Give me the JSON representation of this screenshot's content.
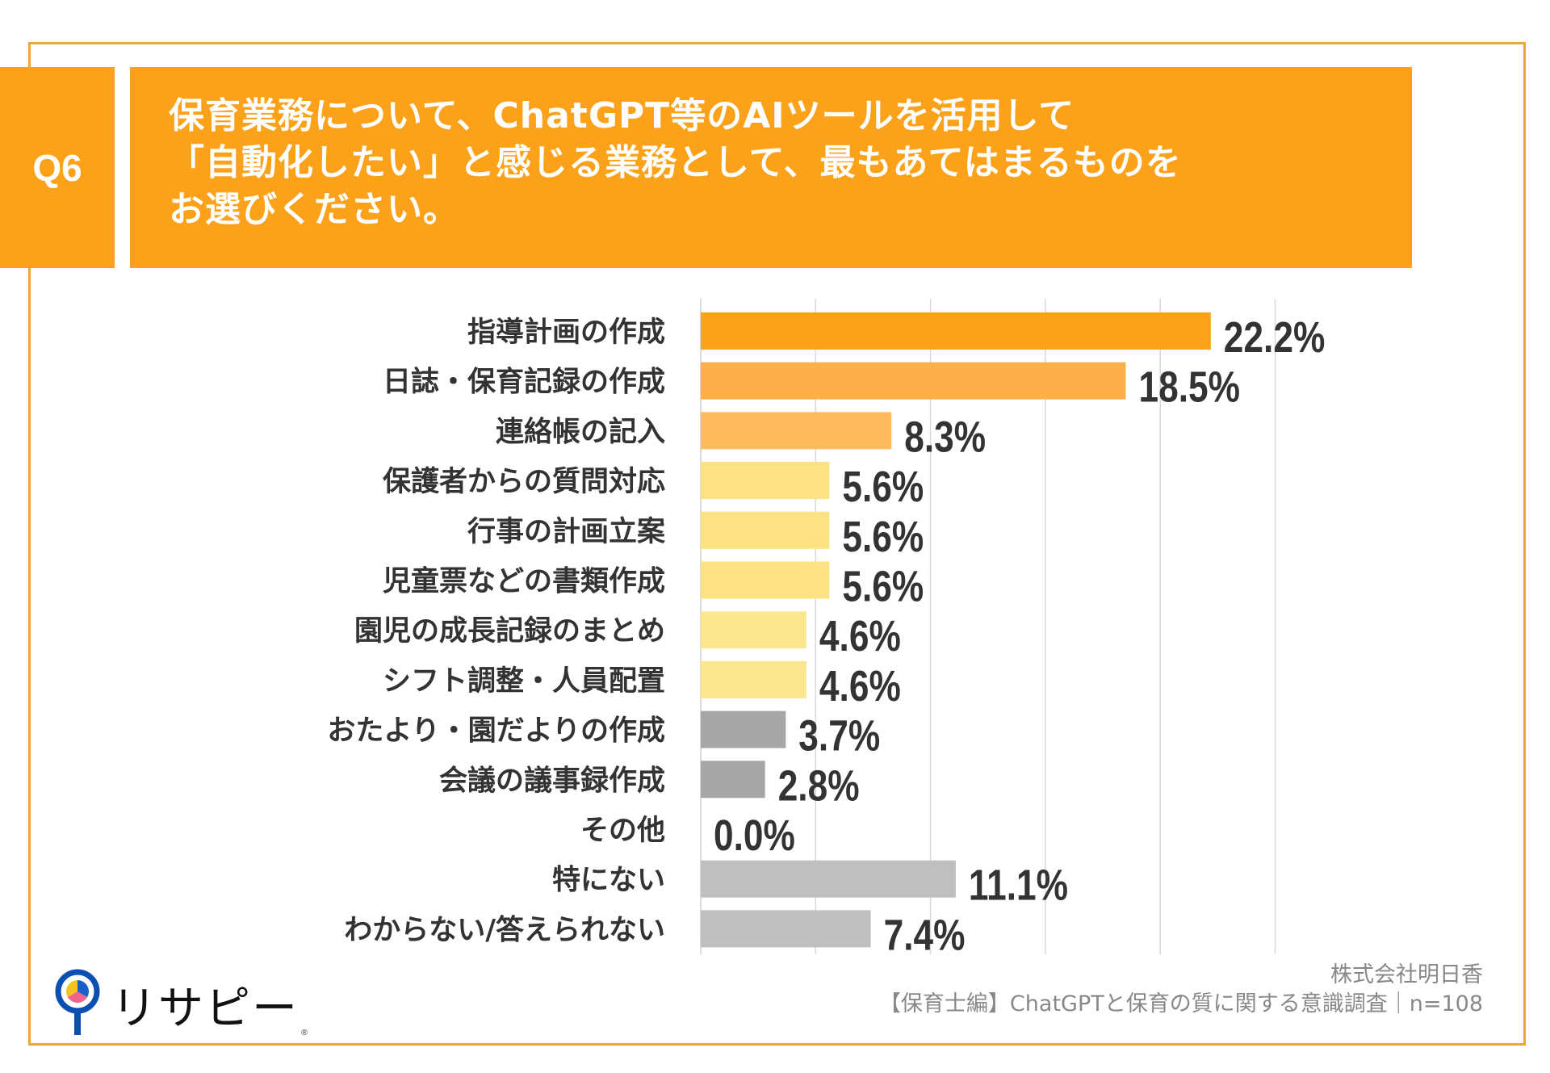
{
  "header": {
    "question_number": "Q6",
    "title_lines": [
      "保育業務について、ChatGPT等のAIツールを活用して",
      "「自動化したい」と感じる業務として、最もあてはまるものを",
      "お選びください。"
    ]
  },
  "colors": {
    "header_orange": "#FBA11A",
    "frame": "#E8A93A",
    "text_dark": "#333333",
    "footer_text": "#888888",
    "gridline": "#D9D9D9"
  },
  "chart_data": {
    "type": "bar",
    "orientation": "horizontal",
    "title": "保育業務について、ChatGPT等のAIツールを活用して「自動化したい」と感じる業務として、最もあてはまるものをお選びください。",
    "xlabel": "",
    "ylabel": "",
    "xlim": [
      0,
      25
    ],
    "grid": true,
    "gridline_step": 5,
    "unit": "%",
    "categories": [
      "指導計画の作成",
      "日誌・保育記録の作成",
      "連絡帳の記入",
      "保護者からの質問対応",
      "行事の計画立案",
      "児童票などの書類作成",
      "園児の成長記録のまとめ",
      "シフト調整・人員配置",
      "おたより・園だよりの作成",
      "会議の議事録作成",
      "その他",
      "特にない",
      "わからない/答えられない"
    ],
    "values": [
      22.2,
      18.5,
      8.3,
      5.6,
      5.6,
      5.6,
      4.6,
      4.6,
      3.7,
      2.8,
      0.0,
      11.1,
      7.4
    ],
    "value_labels": [
      "22.2%",
      "18.5%",
      "8.3%",
      "5.6%",
      "5.6%",
      "5.6%",
      "4.6%",
      "4.6%",
      "3.7%",
      "2.8%",
      "0.0%",
      "11.1%",
      "7.4%"
    ],
    "bar_colors": [
      "#FBA11A",
      "#FDB04A",
      "#FDBA5E",
      "#FDE283",
      "#FDE283",
      "#FDE283",
      "#FDE690",
      "#FDE690",
      "#A6A6A6",
      "#A6A6A6",
      "#A6A6A6",
      "#BFBFBF",
      "#BFBFBF"
    ]
  },
  "footer": {
    "company": "株式会社明日香",
    "survey": "【保育士編】ChatGPTと保育の質に関する意識調査｜n=108"
  },
  "logo": {
    "text": "リサピー",
    "registered_mark": "®",
    "icon": "research-pin-pie-icon"
  }
}
